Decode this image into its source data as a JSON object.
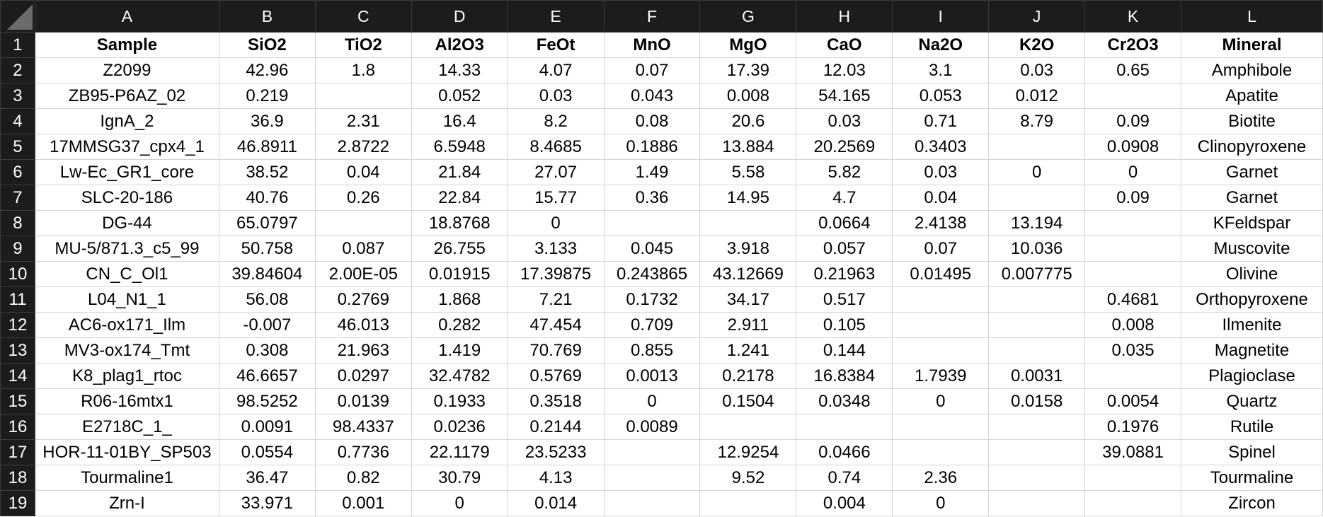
{
  "columns": [
    "A",
    "B",
    "C",
    "D",
    "E",
    "F",
    "G",
    "H",
    "I",
    "J",
    "K",
    "L"
  ],
  "rows": [
    {
      "num": "1",
      "cells": [
        "Sample",
        "SiO2",
        "TiO2",
        "Al2O3",
        "FeOt",
        "MnO",
        "MgO",
        "CaO",
        "Na2O",
        "K2O",
        "Cr2O3",
        "Mineral"
      ]
    },
    {
      "num": "2",
      "cells": [
        "Z2099",
        "42.96",
        "1.8",
        "14.33",
        "4.07",
        "0.07",
        "17.39",
        "12.03",
        "3.1",
        "0.03",
        "0.65",
        "Amphibole"
      ]
    },
    {
      "num": "3",
      "cells": [
        "ZB95-P6AZ_02",
        "0.219",
        "",
        "0.052",
        "0.03",
        "0.043",
        "0.008",
        "54.165",
        "0.053",
        "0.012",
        "",
        "Apatite"
      ]
    },
    {
      "num": "4",
      "cells": [
        "IgnA_2",
        "36.9",
        "2.31",
        "16.4",
        "8.2",
        "0.08",
        "20.6",
        "0.03",
        "0.71",
        "8.79",
        "0.09",
        "Biotite"
      ]
    },
    {
      "num": "5",
      "cells": [
        "17MMSG37_cpx4_1",
        "46.8911",
        "2.8722",
        "6.5948",
        "8.4685",
        "0.1886",
        "13.884",
        "20.2569",
        "0.3403",
        "",
        "0.0908",
        "Clinopyroxene"
      ]
    },
    {
      "num": "6",
      "cells": [
        "Lw-Ec_GR1_core",
        "38.52",
        "0.04",
        "21.84",
        "27.07",
        "1.49",
        "5.58",
        "5.82",
        "0.03",
        "0",
        "0",
        "Garnet"
      ]
    },
    {
      "num": "7",
      "cells": [
        "SLC-20-186",
        "40.76",
        "0.26",
        "22.84",
        "15.77",
        "0.36",
        "14.95",
        "4.7",
        "0.04",
        "",
        "0.09",
        "Garnet"
      ]
    },
    {
      "num": "8",
      "cells": [
        "DG-44",
        "65.0797",
        "",
        "18.8768",
        "0",
        "",
        "",
        "0.0664",
        "2.4138",
        "13.194",
        "",
        "KFeldspar"
      ]
    },
    {
      "num": "9",
      "cells": [
        "MU-5/871.3_c5_99",
        "50.758",
        "0.087",
        "26.755",
        "3.133",
        "0.045",
        "3.918",
        "0.057",
        "0.07",
        "10.036",
        "",
        "Muscovite"
      ]
    },
    {
      "num": "10",
      "cells": [
        "CN_C_Ol1",
        "39.84604",
        "2.00E-05",
        "0.01915",
        "17.39875",
        "0.243865",
        "43.12669",
        "0.21963",
        "0.01495",
        "0.007775",
        "",
        "Olivine"
      ]
    },
    {
      "num": "11",
      "cells": [
        "L04_N1_1",
        "56.08",
        "0.2769",
        "1.868",
        "7.21",
        "0.1732",
        "34.17",
        "0.517",
        "",
        "",
        "0.4681",
        "Orthopyroxene"
      ]
    },
    {
      "num": "12",
      "cells": [
        "AC6-ox171_Ilm",
        "-0.007",
        "46.013",
        "0.282",
        "47.454",
        "0.709",
        "2.911",
        "0.105",
        "",
        "",
        "0.008",
        "Ilmenite"
      ]
    },
    {
      "num": "13",
      "cells": [
        "MV3-ox174_Tmt",
        "0.308",
        "21.963",
        "1.419",
        "70.769",
        "0.855",
        "1.241",
        "0.144",
        "",
        "",
        "0.035",
        "Magnetite"
      ]
    },
    {
      "num": "14",
      "cells": [
        "K8_plag1_rtoc",
        "46.6657",
        "0.0297",
        "32.4782",
        "0.5769",
        "0.0013",
        "0.2178",
        "16.8384",
        "1.7939",
        "0.0031",
        "",
        "Plagioclase"
      ]
    },
    {
      "num": "15",
      "cells": [
        "R06-16mtx1",
        "98.5252",
        "0.0139",
        "0.1933",
        "0.3518",
        "0",
        "0.1504",
        "0.0348",
        "0",
        "0.0158",
        "0.0054",
        "Quartz"
      ]
    },
    {
      "num": "16",
      "cells": [
        "E2718C_1_",
        "0.0091",
        "98.4337",
        "0.0236",
        "0.2144",
        "0.0089",
        "",
        "",
        "",
        "",
        "0.1976",
        "Rutile"
      ]
    },
    {
      "num": "17",
      "cells": [
        "HOR-11-01BY_SP503",
        "0.0554",
        "0.7736",
        "22.1179",
        "23.5233",
        "",
        "12.9254",
        "0.0466",
        "",
        "",
        "39.0881",
        "Spinel"
      ]
    },
    {
      "num": "18",
      "cells": [
        "Tourmaline1",
        "36.47",
        "0.82",
        "30.79",
        "4.13",
        "",
        "9.52",
        "0.74",
        "2.36",
        "",
        "",
        "Tourmaline"
      ]
    },
    {
      "num": "19",
      "cells": [
        "Zrn-I",
        "33.971",
        "0.001",
        "0",
        "0.014",
        "",
        "",
        "0.004",
        "0",
        "",
        "",
        "Zircon"
      ]
    }
  ]
}
